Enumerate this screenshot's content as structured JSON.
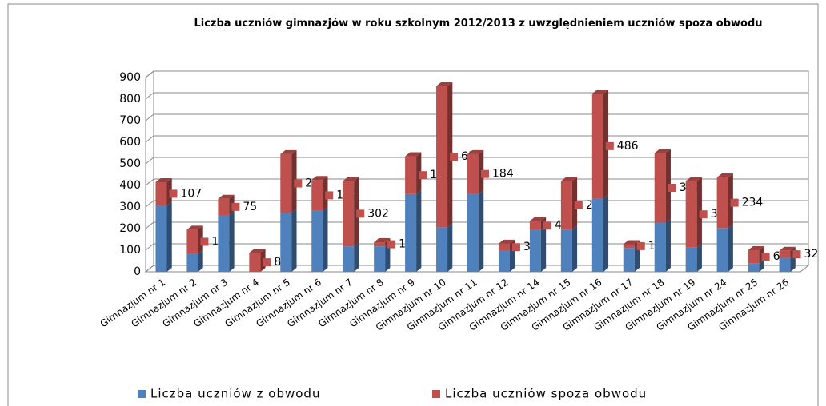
{
  "chart_data": {
    "type": "bar3d_stacked",
    "title": "Liczba uczniów gimnazjów w roku szkolnym 2012/2013 z uwzględnieniem uczniów spoza obwodu",
    "categories": [
      "Gimnazjum nr 1",
      "Gimnazjum nr 2",
      "Gimnazjum nr 3",
      "Gimnazjum nr 4",
      "Gimnazjum nr 5",
      "Gimnazjum nr 6",
      "Gimnazjum nr 7",
      "Gimnazjum nr 8",
      "Gimnazjum nr 9",
      "Gimnazjum nr 10",
      "Gimnazjum nr 11",
      "Gimnazjum nr 12",
      "Gimnazjum nr 14",
      "Gimnazjum nr 15",
      "Gimnazjum nr 16",
      "Gimnazjum nr 17",
      "Gimnazjum nr 18",
      "Gimnazjum nr 19",
      "Gimnazjum nr 24",
      "Gimnazjum nr 25",
      "Gimnazjum nr 26"
    ],
    "series": [
      {
        "name": "Liczba uczniów z obwodu",
        "color": "#4f81bd",
        "values": [
          308,
          83,
          263,
          0,
          273,
          283,
          118,
          118,
          360,
          206,
          361,
          98,
          193,
          195,
          339,
          110,
          228,
          112,
          203,
          40,
          65
        ]
      },
      {
        "name": "Liczba uczniów spoza obwodu",
        "color": "#c0504d",
        "values": [
          107,
          112,
          75,
          88,
          272,
          142,
          302,
          19,
          175,
          654,
          184,
          32,
          42,
          225,
          486,
          18,
          322,
          308,
          234,
          60,
          32
        ]
      }
    ],
    "ylim": [
      0,
      900
    ],
    "yticks": [
      0,
      100,
      200,
      300,
      400,
      500,
      600,
      700,
      800,
      900
    ],
    "grid": true,
    "legend": "bottom"
  }
}
